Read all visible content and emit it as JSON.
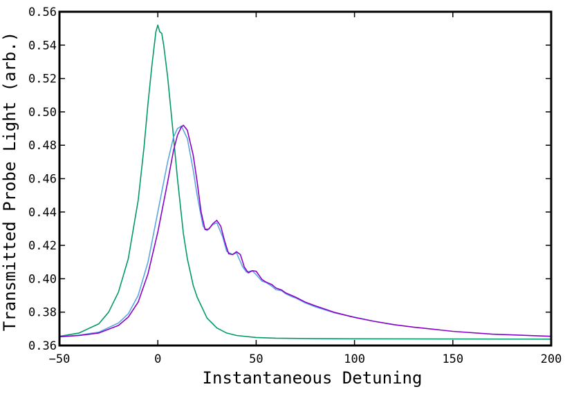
{
  "chart_data": {
    "type": "line",
    "title": "",
    "xlabel": "Instantaneous Detuning",
    "ylabel": "Transmitted Probe Light (arb.)",
    "xlim": [
      -50,
      200
    ],
    "ylim": [
      0.36,
      0.56
    ],
    "x_ticks": [
      -50,
      0,
      50,
      100,
      150,
      200
    ],
    "x_tick_labels": [
      "−50",
      "0",
      "50",
      "100",
      "150",
      "200"
    ],
    "y_ticks": [
      0.36,
      0.38,
      0.4,
      0.42,
      0.44,
      0.46,
      0.48,
      0.5,
      0.52,
      0.54,
      0.56
    ],
    "y_tick_labels": [
      "0.36",
      "0.38",
      "0.40",
      "0.42",
      "0.44",
      "0.46",
      "0.48",
      "0.50",
      "0.52",
      "0.54",
      "0.56"
    ],
    "grid": false,
    "legend": "none",
    "series": [
      {
        "color": "#009966",
        "x": [
          -50,
          -40,
          -30,
          -25,
          -20,
          -15,
          -10,
          -7,
          -5,
          -3,
          -1,
          0,
          1,
          2,
          3,
          5,
          7,
          10,
          13,
          15,
          18,
          20,
          25,
          30,
          35,
          40,
          50,
          60,
          80,
          100,
          150,
          200
        ],
        "y": [
          0.3655,
          0.3675,
          0.373,
          0.38,
          0.392,
          0.412,
          0.447,
          0.479,
          0.505,
          0.528,
          0.548,
          0.552,
          0.548,
          0.547,
          0.54,
          0.521,
          0.497,
          0.46,
          0.427,
          0.412,
          0.396,
          0.389,
          0.3765,
          0.3705,
          0.3675,
          0.366,
          0.3648,
          0.3644,
          0.3641,
          0.364,
          0.3639,
          0.3638
        ]
      },
      {
        "color": "#5aa6e0",
        "x": [
          -50,
          -40,
          -30,
          -20,
          -15,
          -10,
          -5,
          0,
          5,
          8,
          10,
          12,
          15,
          18,
          20,
          23,
          25,
          28,
          30,
          33,
          35,
          38,
          40,
          43,
          45,
          48,
          50,
          53,
          55,
          58,
          60,
          63,
          65,
          68,
          70,
          75,
          80,
          90,
          100,
          110,
          120
        ],
        "y": [
          0.3652,
          0.3662,
          0.368,
          0.3735,
          0.379,
          0.39,
          0.41,
          0.44,
          0.47,
          0.485,
          0.49,
          0.4915,
          0.484,
          0.465,
          0.45,
          0.4315,
          0.4288,
          0.4325,
          0.4335,
          0.425,
          0.4165,
          0.4145,
          0.4155,
          0.4075,
          0.404,
          0.4048,
          0.4025,
          0.3985,
          0.3978,
          0.3955,
          0.3935,
          0.3928,
          0.391,
          0.3893,
          0.3885,
          0.3855,
          0.3832,
          0.3795,
          0.377,
          0.3745,
          0.3725
        ]
      },
      {
        "color": "#8800c8",
        "x": [
          -50,
          -40,
          -30,
          -20,
          -15,
          -10,
          -5,
          0,
          5,
          8,
          10,
          12,
          13,
          15,
          18,
          20,
          22,
          24,
          26,
          28,
          30,
          32,
          34,
          36,
          38,
          40,
          42,
          44,
          46,
          48,
          50,
          53,
          55,
          58,
          60,
          63,
          65,
          68,
          70,
          75,
          80,
          90,
          100,
          110,
          120,
          130,
          150,
          170,
          200
        ],
        "y": [
          0.3652,
          0.366,
          0.3675,
          0.372,
          0.377,
          0.386,
          0.403,
          0.428,
          0.458,
          0.477,
          0.486,
          0.491,
          0.492,
          0.489,
          0.474,
          0.458,
          0.44,
          0.4295,
          0.4298,
          0.433,
          0.435,
          0.4315,
          0.4225,
          0.415,
          0.4145,
          0.4162,
          0.4145,
          0.407,
          0.4035,
          0.4048,
          0.4045,
          0.3995,
          0.398,
          0.3965,
          0.3945,
          0.3932,
          0.3915,
          0.39,
          0.389,
          0.386,
          0.3838,
          0.3798,
          0.3768,
          0.3745,
          0.3725,
          0.371,
          0.3685,
          0.3668,
          0.3655
        ]
      }
    ]
  }
}
